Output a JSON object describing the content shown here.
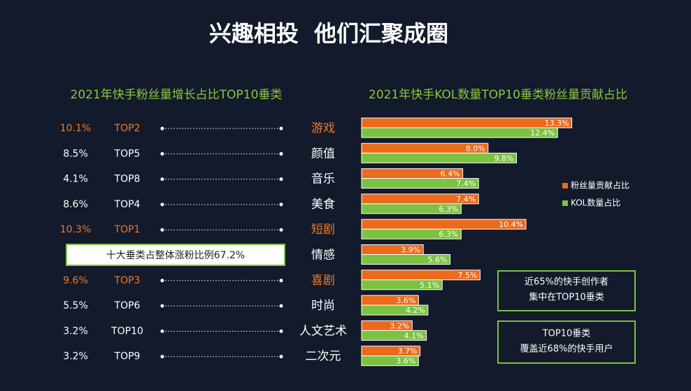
{
  "title": "兴趣相投  他们汇聚成圈",
  "left": {
    "title": "2021年快手粉丝量增长占比TOP10垂类",
    "rows": [
      {
        "share": "10.1%",
        "rank": "TOP2"
      },
      {
        "share": "8.5%",
        "rank": "TOP5"
      },
      {
        "share": "4.1%",
        "rank": "TOP8"
      },
      {
        "share": "8.6%",
        "rank": "TOP4"
      },
      {
        "share": "10.3%",
        "rank": "TOP1"
      },
      {
        "share": "9.6%",
        "rank": "TOP3"
      },
      {
        "share": "5.5%",
        "rank": "TOP6"
      },
      {
        "share": "3.2%",
        "rank": "TOP10"
      },
      {
        "share": "3.2%",
        "rank": "TOP9"
      }
    ],
    "row_categories": [
      0,
      1,
      2,
      3,
      4,
      6,
      7,
      8,
      9
    ],
    "note": "十大垂类占整体涨粉比例67.2%"
  },
  "chart_data": {
    "type": "bar",
    "orientation": "horizontal",
    "title": "2021年快手KOL数量TOP10垂类粉丝量贡献占比",
    "categories": [
      "游戏",
      "颜值",
      "音乐",
      "美食",
      "短剧",
      "情感",
      "喜剧",
      "时尚",
      "人文艺术",
      "二次元"
    ],
    "highlight": [
      true,
      false,
      false,
      false,
      true,
      false,
      true,
      false,
      false,
      false
    ],
    "highlight_color": "#f07a2a",
    "series": [
      {
        "name": "粉丝量贡献占比",
        "color": "#ec6a1c",
        "values": [
          13.3,
          8.0,
          6.4,
          7.4,
          10.4,
          3.9,
          7.5,
          3.6,
          3.2,
          3.7
        ],
        "value_labels": [
          "13.3%",
          "8.0%",
          "6.4%",
          "7.4%",
          "10.4%",
          "3.9%",
          "7.5%",
          "3.6%",
          "3.2%",
          "3.7%"
        ]
      },
      {
        "name": "KOL数量占比",
        "color": "#7cc242",
        "values": [
          12.4,
          9.8,
          7.4,
          6.3,
          6.3,
          5.6,
          5.1,
          4.2,
          4.1,
          3.6
        ],
        "value_labels": [
          "12.4%",
          "9.8%",
          "7.4%",
          "6.3%",
          "6.3%",
          "5.6%",
          "5.1%",
          "4.2%",
          "4.1%",
          "3.6%"
        ]
      }
    ],
    "legend": "right"
  },
  "notes": [
    [
      "近65%的快手创作者",
      "集中在TOP10垂类"
    ],
    [
      "TOP10垂类",
      "覆盖近68%的快手用户"
    ]
  ]
}
